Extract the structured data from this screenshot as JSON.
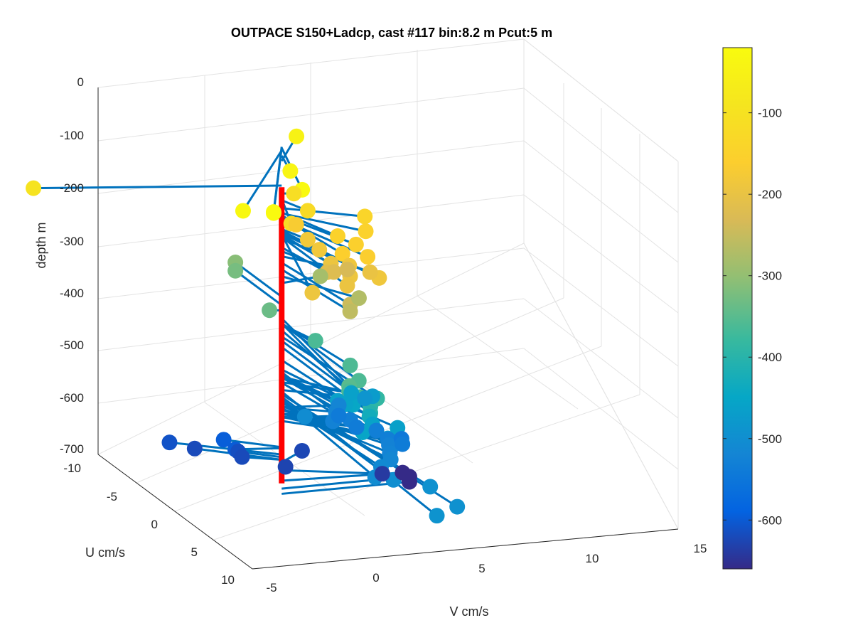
{
  "chart_data": {
    "type": "scatter",
    "title": "OUTPACE S150+Ladcp, cast #117 bin:8.2 m  Pcut:5 m",
    "xlabel": "V cm/s",
    "ylabel": "U cm/s",
    "zlabel": "depth m",
    "xlim": [
      -5,
      15
    ],
    "ylim": [
      -10,
      10
    ],
    "zlim": [
      -700,
      0
    ],
    "x_ticks": [
      "-5",
      "0",
      "5",
      "10",
      "15"
    ],
    "y_ticks": [
      "-10",
      "-5",
      "0",
      "5",
      "10"
    ],
    "z_ticks": [
      "0",
      "-100",
      "-200",
      "-300",
      "-400",
      "-500",
      "-600",
      "-700"
    ],
    "colorbar": {
      "range": [
        -660,
        -20
      ],
      "ticks": [
        "-100",
        "-200",
        "-300",
        "-400",
        "-500",
        "-600"
      ],
      "colormap": "parula"
    },
    "grid": true,
    "stem_color": "#0072BD",
    "axis_line_color": "#FF0000",
    "series": [
      {
        "points_uvz": [
          [
            -3.2,
            -10.5,
            -97
          ],
          [
            -3.6,
            2.0,
            -50
          ],
          [
            2.5,
            -0.5,
            -40
          ],
          [
            6.8,
            -1.5,
            -25
          ],
          [
            8.8,
            -5.0,
            -30
          ],
          [
            10.0,
            -4.0,
            -25
          ],
          [
            10.0,
            -4.0,
            -23
          ],
          [
            0.2,
            0.5,
            -112
          ],
          [
            2.0,
            0.5,
            -125
          ],
          [
            4.0,
            -1.0,
            -122
          ],
          [
            2.5,
            3.0,
            -140
          ],
          [
            4.5,
            1.0,
            -148
          ],
          [
            4.0,
            2.5,
            -150
          ],
          [
            5.5,
            1.5,
            -155
          ],
          [
            6.5,
            0.5,
            -158
          ],
          [
            7.0,
            1.5,
            -162
          ],
          [
            0.5,
            0.5,
            -168
          ],
          [
            2.0,
            0.5,
            -180
          ],
          [
            3.5,
            0.5,
            -183
          ],
          [
            6.0,
            1.0,
            -188
          ],
          [
            7.5,
            0.5,
            -190
          ],
          [
            8.5,
            0.0,
            -195
          ],
          [
            5.0,
            0.5,
            -193
          ],
          [
            9.5,
            -2.0,
            -190
          ],
          [
            8.5,
            1.5,
            -186
          ],
          [
            6.5,
            1.8,
            -198
          ],
          [
            4.5,
            0.5,
            -215
          ],
          [
            4.0,
            1.0,
            -222
          ],
          [
            3.0,
            2.0,
            -232
          ],
          [
            7.5,
            0.5,
            -244
          ],
          [
            7.5,
            0.5,
            -257
          ],
          [
            4.5,
            2.0,
            -270
          ],
          [
            -0.5,
            2.0,
            -283
          ],
          [
            -6.0,
            0.0,
            -309
          ],
          [
            -6.0,
            0.0,
            -325
          ],
          [
            -0.2,
            -0.5,
            -335
          ],
          [
            3.0,
            0.5,
            -362
          ],
          [
            7.5,
            0.5,
            -360
          ],
          [
            10.0,
            0.0,
            -360
          ],
          [
            11.5,
            -1.0,
            -350
          ],
          [
            11.5,
            -1.0,
            -360
          ],
          [
            11.5,
            -0.5,
            -373
          ],
          [
            11.0,
            0.5,
            -385
          ],
          [
            11.5,
            0.0,
            -393
          ],
          [
            11.5,
            0.0,
            -405
          ],
          [
            10.0,
            0.5,
            -430
          ],
          [
            10.5,
            0.0,
            -453
          ],
          [
            9.0,
            1.0,
            -458
          ],
          [
            11.0,
            1.0,
            -463
          ],
          [
            9.5,
            2.0,
            -463
          ],
          [
            11.5,
            1.0,
            -473
          ],
          [
            6.5,
            1.0,
            -448
          ],
          [
            5.5,
            1.0,
            -458
          ],
          [
            4.5,
            1.0,
            -462
          ],
          [
            3.5,
            2.0,
            -462
          ],
          [
            3.5,
            3.0,
            -472
          ],
          [
            2.5,
            3.0,
            -487
          ],
          [
            3.0,
            0.0,
            -505
          ],
          [
            14.5,
            0.0,
            -500
          ],
          [
            16.5,
            1.0,
            -495
          ],
          [
            20.0,
            1.0,
            -495
          ],
          [
            21.5,
            -0.5,
            -490
          ],
          [
            1.5,
            2.0,
            -520
          ],
          [
            2.0,
            2.5,
            -532
          ],
          [
            0.5,
            2.5,
            -520
          ],
          [
            2.8,
            2.5,
            -537
          ],
          [
            4.0,
            3.0,
            -532
          ],
          [
            5.5,
            3.0,
            -532
          ],
          [
            7.0,
            2.5,
            -525
          ],
          [
            8.5,
            2.0,
            -522
          ],
          [
            10.0,
            1.5,
            -516
          ],
          [
            11.5,
            0.5,
            -510
          ],
          [
            13.5,
            -0.5,
            -504
          ],
          [
            4.5,
            4.0,
            -546
          ],
          [
            6.0,
            3.5,
            -538
          ],
          [
            2.5,
            1.5,
            -525
          ],
          [
            0.5,
            2.5,
            -540
          ],
          [
            -2.0,
            -2.0,
            -596
          ],
          [
            -0.5,
            -2.0,
            -598
          ],
          [
            -3.5,
            -4.0,
            -610
          ],
          [
            -3.0,
            -3.0,
            -620
          ],
          [
            -1.5,
            -1.5,
            -615
          ],
          [
            -1.0,
            -1.5,
            -620
          ],
          [
            -1.5,
            1.5,
            -625
          ],
          [
            0.5,
            0.0,
            -628
          ],
          [
            2.0,
            4.0,
            -640
          ],
          [
            0.5,
            5.5,
            -660
          ],
          [
            0.0,
            6.0,
            -675
          ],
          [
            0.0,
            6.0,
            -685
          ]
        ]
      }
    ]
  }
}
